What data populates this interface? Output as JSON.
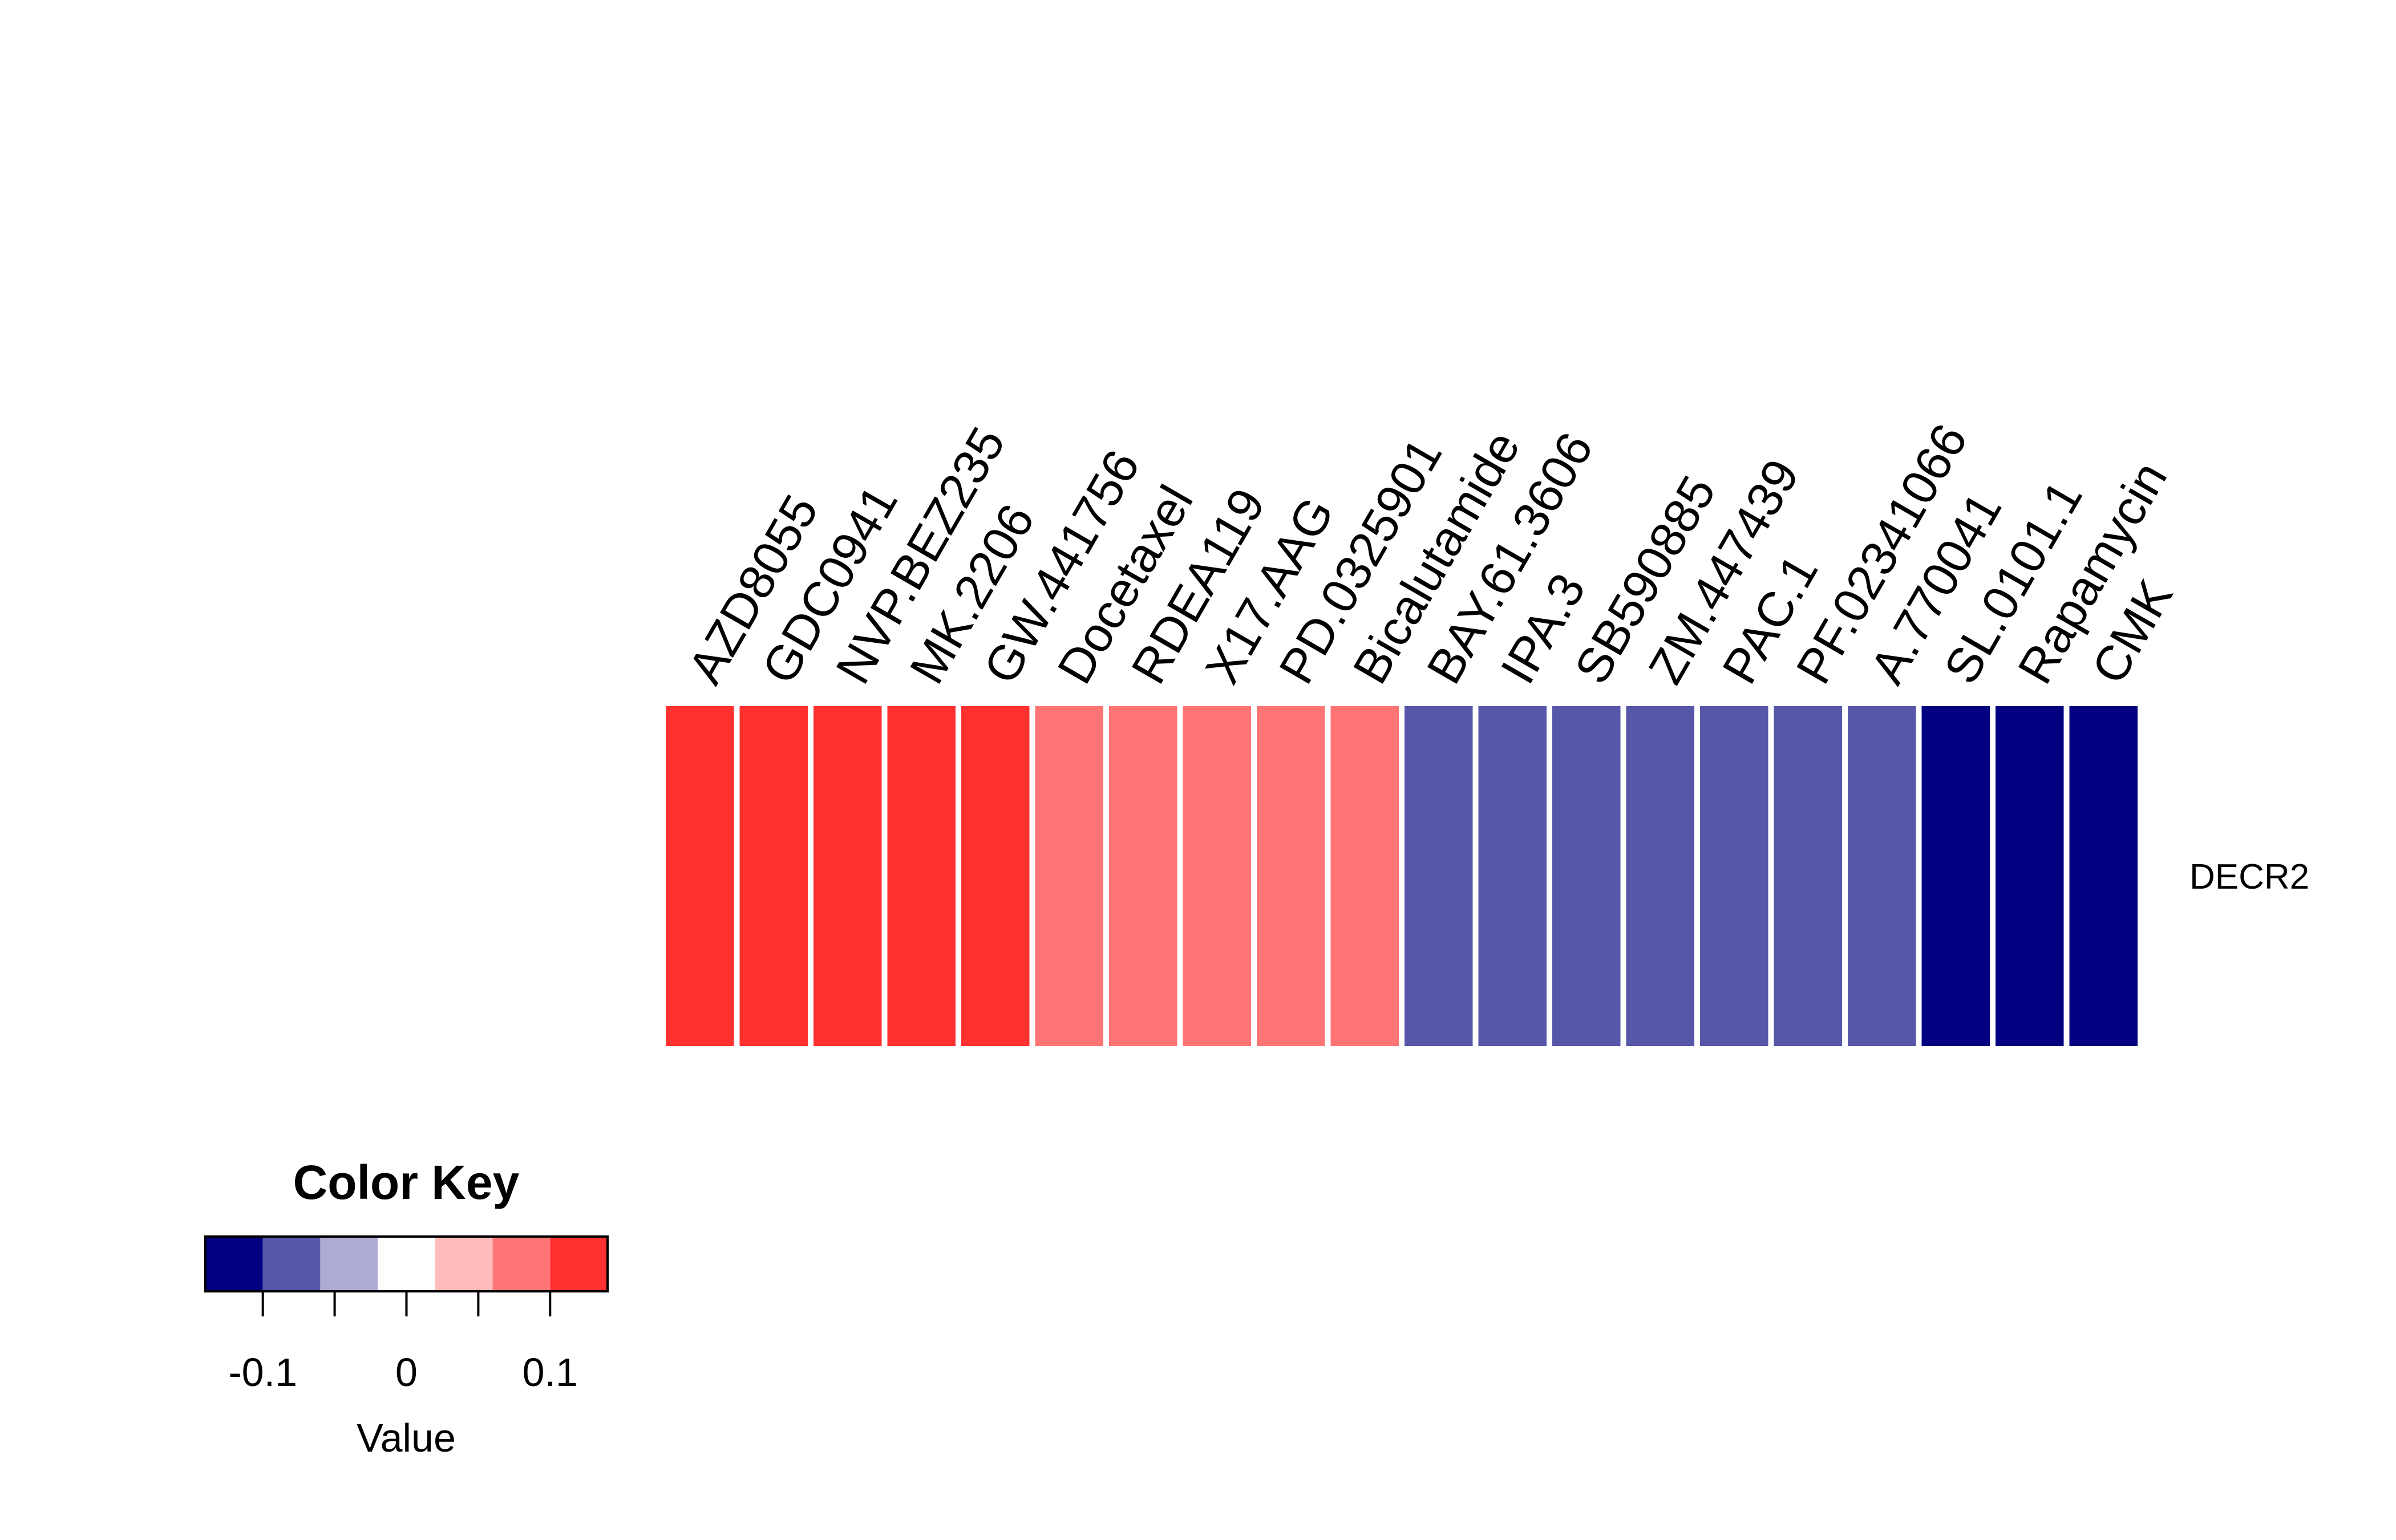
{
  "chart_data": {
    "type": "heatmap",
    "rows": [
      "DECR2"
    ],
    "columns": [
      "AZD8055",
      "GDC0941",
      "NVP.BEZ235",
      "MK.2206",
      "GW.441756",
      "Docetaxel",
      "RDEA119",
      "X17.AAG",
      "PD.0325901",
      "Bicalutamide",
      "BAY.61.3606",
      "IPA.3",
      "SB590885",
      "ZM.447439",
      "PAC.1",
      "PF.02341066",
      "A.770041",
      "SL.0101.1",
      "Rapamycin",
      "CMK"
    ],
    "values": [
      [
        0.12,
        0.12,
        0.12,
        0.12,
        0.12,
        0.08,
        0.08,
        0.08,
        0.08,
        0.08,
        -0.08,
        -0.08,
        -0.08,
        -0.08,
        -0.08,
        -0.08,
        -0.08,
        -0.12,
        -0.12,
        -0.12
      ]
    ],
    "color_key": {
      "title": "Color Key",
      "xlabel": "Value",
      "breaks": [
        -0.14,
        -0.1,
        -0.06,
        -0.02,
        0.02,
        0.06,
        0.1,
        0.14
      ],
      "colors": [
        "#000080",
        "#5757A9",
        "#ABABD4",
        "#FFFFFF",
        "#FFBABA",
        "#FF7575",
        "#FF3030"
      ],
      "ticks": [
        -0.1,
        -0.05,
        0,
        0.05,
        0.1
      ],
      "tick_labels": [
        "-0.1",
        "",
        "0",
        "",
        "0.1"
      ]
    }
  }
}
